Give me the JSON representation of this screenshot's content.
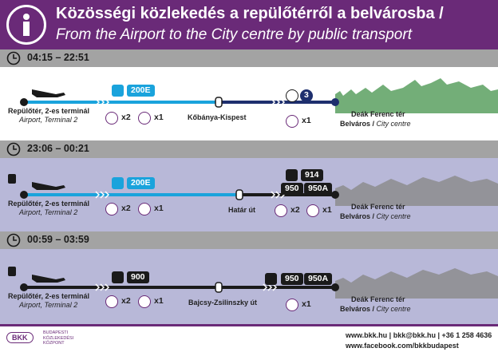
{
  "header": {
    "title_hu": "Közösségi közlekedés a repülőtérről a belvárosba /",
    "title_en": "From the Airport to the City centre by public transport"
  },
  "sections": [
    {
      "time": "04:15 – 22:51",
      "origin_hu": "Repülőtér, 2-es terminál",
      "origin_en": "Airport, Terminal 2",
      "bus_line": "200E",
      "transfer_stop": "Kőbánya-Kispest",
      "metro_line": "3",
      "bus_tickets": "x2",
      "metro_tickets": "x1",
      "dest_stop": "Deák Ferenc tér",
      "dest_district": "Belváros /",
      "dest_en": "City centre"
    },
    {
      "time": "23:06 – 00:21",
      "origin_hu": "Repülőtér, 2-es terminál",
      "origin_en": "Airport, Terminal 2",
      "bus_line": "200E",
      "transfer_stop": "Határ út",
      "night_lines": [
        "914",
        "950",
        "950A"
      ],
      "bus_tickets": "x2",
      "bus_tickets_b": "x1",
      "night_tickets": "x2",
      "night_tickets_b": "x1",
      "dest_stop": "Deák Ferenc tér",
      "dest_district": "Belváros /",
      "dest_en": "City centre"
    },
    {
      "time": "00:59 – 03:59",
      "origin_hu": "Repülőtér, 2-es terminál",
      "origin_en": "Airport, Terminal 2",
      "bus_line": "900",
      "transfer_stop": "Bajcsy-Zsilinszky út",
      "night_lines": [
        "950",
        "950A"
      ],
      "bus_tickets": "x2",
      "bus_tickets_b": "x1",
      "night_tickets": "x1",
      "dest_stop": "Deák Ferenc tér",
      "dest_district": "Belváros /",
      "dest_en": "City centre"
    }
  ],
  "footer": {
    "logo": "BKK",
    "org_line1": "BUDAPESTI",
    "org_line2": "KÖZLEKEDÉSI",
    "org_line3": "KÖZPONT",
    "web": "www.bkk.hu | bkk@bkk.hu | +36 1 258 4636",
    "facebook": "www.facebook.com/bkkbudapest"
  },
  "colors": {
    "header": "#6a2a78",
    "bus_blue": "#1aa3dc",
    "metro_navy": "#1e2f6e",
    "night_black": "#1a1a1a",
    "night_bg": "#b8b8d8",
    "city_green": "#5aa060"
  }
}
